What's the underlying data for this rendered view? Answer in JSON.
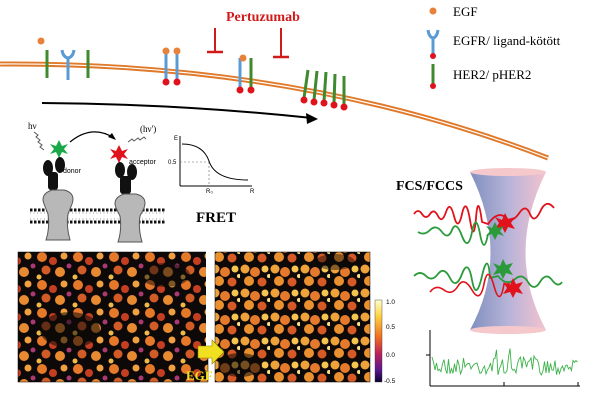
{
  "colors": {
    "membrane": "#e07a2a",
    "egf": "#e8823a",
    "egfr": "#5b9bd5",
    "her2": "#3f8a2e",
    "phospho": "#e0121b",
    "pertuzumab": "#d11a1a",
    "fcs_trace": "#3cb24a",
    "egf_arrow": "#f0e020"
  },
  "labels": {
    "pertuzumab": "Pertuzumab",
    "fret": "FRET",
    "fcs": "FCS/FCCS",
    "egf_arrow": "EGF"
  },
  "legend": [
    {
      "icon": "egf-ligand-icon",
      "label": "EGF"
    },
    {
      "icon": "egfr-receptor-icon",
      "label": "EGFR/ ligand-kötött"
    },
    {
      "icon": "her2-receptor-icon",
      "label": "HER2/ pHER2"
    }
  ],
  "fret_scheme": {
    "donor": "donor",
    "acceptor": "acceptor",
    "hv_in": "hν",
    "hv_out": "(hν')",
    "graph_y_label": "E",
    "graph_tick": "0.5",
    "graph_r0": "R₀",
    "graph_x_label": "R"
  },
  "colorbar": {
    "ticks": [
      "1.0",
      "0.5",
      "0.0",
      "-0.5"
    ]
  }
}
